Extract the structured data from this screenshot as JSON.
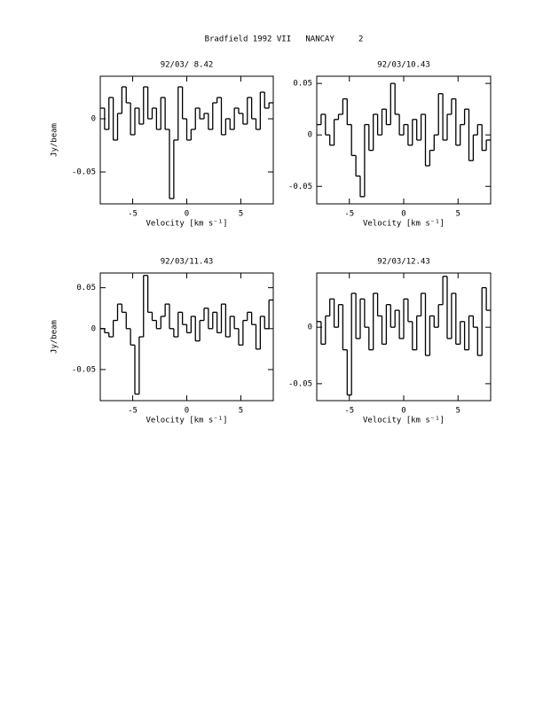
{
  "title": "Bradfield 1992 VII   NANCAY     2",
  "chart_data": [
    {
      "type": "line",
      "step": true,
      "title": "92/03/ 8.42",
      "x_label": "Velocity [km s⁻¹]",
      "y_label": "Jy/beam",
      "xlim": [
        -8,
        8
      ],
      "xticks": [
        -5,
        0,
        5
      ],
      "ylim": [
        -0.08,
        0.04
      ],
      "yticks": [
        -0.05,
        0
      ],
      "color": "#000000",
      "x": [
        -7.8,
        -7.4,
        -7.0,
        -6.6,
        -6.2,
        -5.8,
        -5.4,
        -5.0,
        -4.6,
        -4.2,
        -3.8,
        -3.4,
        -3.0,
        -2.6,
        -2.2,
        -1.8,
        -1.4,
        -1.0,
        -0.6,
        -0.2,
        0.2,
        0.6,
        1.0,
        1.4,
        1.8,
        2.2,
        2.6,
        3.0,
        3.4,
        3.8,
        4.2,
        4.6,
        5.0,
        5.4,
        5.8,
        6.2,
        6.6,
        7.0,
        7.4,
        7.8
      ],
      "values": [
        0.01,
        -0.01,
        0.02,
        -0.02,
        0.005,
        0.03,
        0.015,
        -0.015,
        0.01,
        -0.005,
        0.03,
        0.0,
        0.01,
        -0.01,
        0.02,
        -0.01,
        -0.075,
        -0.02,
        0.03,
        0.0,
        -0.02,
        -0.01,
        0.01,
        0.0,
        0.005,
        -0.01,
        0.015,
        0.02,
        -0.015,
        0.0,
        -0.01,
        0.01,
        0.005,
        -0.005,
        0.02,
        0.0,
        -0.01,
        0.025,
        0.01,
        0.015
      ]
    },
    {
      "type": "line",
      "step": true,
      "title": "92/03/10.43",
      "x_label": "Velocity [km s⁻¹]",
      "xlim": [
        -8,
        8
      ],
      "xticks": [
        -5,
        0,
        5
      ],
      "ylim": [
        -0.067,
        0.057
      ],
      "yticks": [
        -0.05,
        0,
        0.05
      ],
      "color": "#000000",
      "x": [
        -7.8,
        -7.4,
        -7.0,
        -6.6,
        -6.2,
        -5.8,
        -5.4,
        -5.0,
        -4.6,
        -4.2,
        -3.8,
        -3.4,
        -3.0,
        -2.6,
        -2.2,
        -1.8,
        -1.4,
        -1.0,
        -0.6,
        -0.2,
        0.2,
        0.6,
        1.0,
        1.4,
        1.8,
        2.2,
        2.6,
        3.0,
        3.4,
        3.8,
        4.2,
        4.6,
        5.0,
        5.4,
        5.8,
        6.2,
        6.6,
        7.0,
        7.4,
        7.8
      ],
      "values": [
        0.01,
        0.02,
        0.0,
        -0.01,
        0.015,
        0.02,
        0.035,
        0.01,
        -0.02,
        -0.04,
        -0.06,
        0.01,
        -0.015,
        0.02,
        0.0,
        0.025,
        0.01,
        0.05,
        0.02,
        0.0,
        0.01,
        -0.01,
        0.015,
        -0.005,
        0.02,
        -0.03,
        -0.015,
        0.0,
        0.04,
        -0.005,
        0.02,
        0.035,
        -0.01,
        0.01,
        0.025,
        -0.025,
        0.0,
        0.01,
        -0.015,
        -0.005
      ]
    },
    {
      "type": "line",
      "step": true,
      "title": "92/03/11.43",
      "x_label": "Velocity [km s⁻¹]",
      "y_label": "Jy/beam",
      "xlim": [
        -8,
        8
      ],
      "xticks": [
        -5,
        0,
        5
      ],
      "ylim": [
        -0.088,
        0.068
      ],
      "yticks": [
        -0.05,
        0,
        0.05
      ],
      "color": "#000000",
      "x": [
        -7.8,
        -7.4,
        -7.0,
        -6.6,
        -6.2,
        -5.8,
        -5.4,
        -5.0,
        -4.6,
        -4.2,
        -3.8,
        -3.4,
        -3.0,
        -2.6,
        -2.2,
        -1.8,
        -1.4,
        -1.0,
        -0.6,
        -0.2,
        0.2,
        0.6,
        1.0,
        1.4,
        1.8,
        2.2,
        2.6,
        3.0,
        3.4,
        3.8,
        4.2,
        4.6,
        5.0,
        5.4,
        5.8,
        6.2,
        6.6,
        7.0,
        7.4,
        7.8
      ],
      "values": [
        0.0,
        -0.005,
        -0.01,
        0.01,
        0.03,
        0.02,
        0.0,
        -0.02,
        -0.08,
        -0.01,
        0.065,
        0.02,
        0.01,
        0.0,
        0.015,
        0.03,
        0.0,
        -0.01,
        0.02,
        0.005,
        -0.005,
        0.015,
        -0.015,
        0.01,
        0.025,
        0.0,
        0.02,
        -0.005,
        0.03,
        -0.01,
        0.015,
        0.0,
        -0.02,
        0.01,
        0.02,
        0.005,
        -0.025,
        0.015,
        0.0,
        0.035
      ]
    },
    {
      "type": "line",
      "step": true,
      "title": "92/03/12.43",
      "x_label": "Velocity [km s⁻¹]",
      "xlim": [
        -8,
        8
      ],
      "xticks": [
        -5,
        0,
        5
      ],
      "ylim": [
        -0.065,
        0.048
      ],
      "yticks": [
        -0.05,
        0
      ],
      "color": "#000000",
      "x": [
        -7.8,
        -7.4,
        -7.0,
        -6.6,
        -6.2,
        -5.8,
        -5.4,
        -5.0,
        -4.6,
        -4.2,
        -3.8,
        -3.4,
        -3.0,
        -2.6,
        -2.2,
        -1.8,
        -1.4,
        -1.0,
        -0.6,
        -0.2,
        0.2,
        0.6,
        1.0,
        1.4,
        1.8,
        2.2,
        2.6,
        3.0,
        3.4,
        3.8,
        4.2,
        4.6,
        5.0,
        5.4,
        5.8,
        6.2,
        6.6,
        7.0,
        7.4,
        7.8
      ],
      "values": [
        0.005,
        -0.015,
        0.01,
        0.025,
        0.0,
        0.02,
        -0.02,
        -0.06,
        0.03,
        -0.01,
        0.025,
        0.0,
        -0.02,
        0.03,
        0.01,
        -0.015,
        0.02,
        0.0,
        0.015,
        -0.01,
        0.025,
        0.005,
        -0.02,
        0.01,
        0.03,
        -0.025,
        0.01,
        0.0,
        0.02,
        0.045,
        -0.01,
        0.03,
        -0.015,
        0.005,
        -0.02,
        0.01,
        0.0,
        -0.025,
        0.035,
        0.015
      ]
    }
  ]
}
